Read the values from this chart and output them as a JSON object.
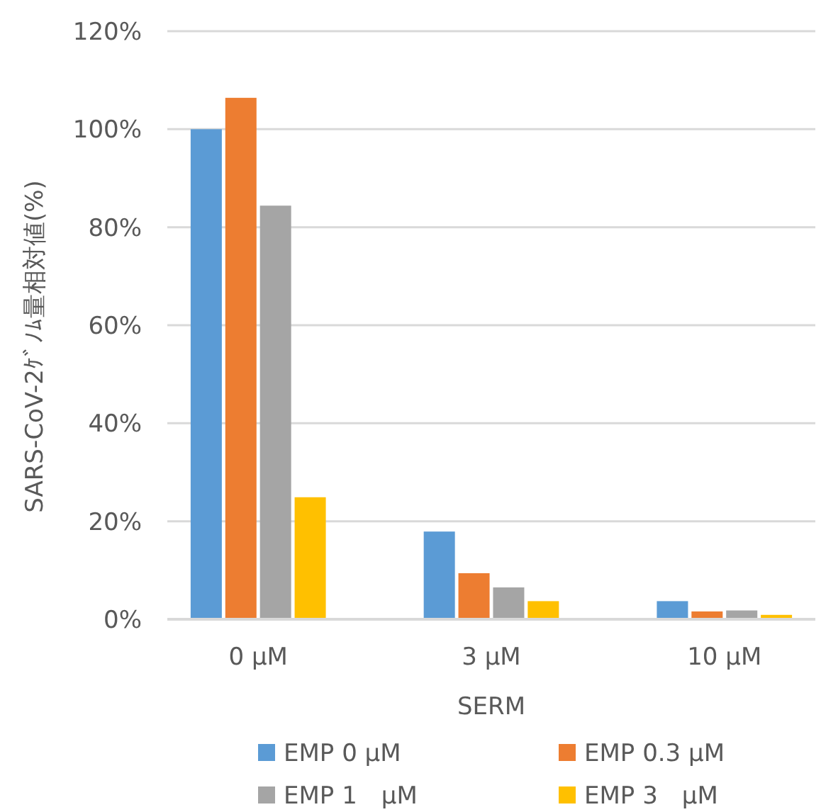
{
  "chart_data": {
    "type": "bar",
    "xlabel": "SERM",
    "ylabel": "SARS-CoV-2ｹﾞﾉﾑ量相対値(%)",
    "categories": [
      "0 μM",
      "3 μM",
      "10 μM"
    ],
    "series": [
      {
        "name": "EMP 0 μM",
        "color": "#5b9bd5",
        "values": [
          100,
          17.9,
          3.7
        ]
      },
      {
        "name": "EMP 0.3 μM",
        "color": "#ed7d31",
        "values": [
          106.4,
          9.4,
          1.6
        ]
      },
      {
        "name": "EMP 1　μM",
        "color": "#a5a5a5",
        "values": [
          84.4,
          6.5,
          1.8
        ]
      },
      {
        "name": "EMP 3　μM",
        "color": "#ffc000",
        "values": [
          24.9,
          3.7,
          0.9
        ]
      }
    ],
    "ylim": [
      0,
      120
    ],
    "yticks": [
      {
        "value": 0,
        "label": "0%"
      },
      {
        "value": 20,
        "label": "20%"
      },
      {
        "value": 40,
        "label": "40%"
      },
      {
        "value": 60,
        "label": "60%"
      },
      {
        "value": 80,
        "label": "80%"
      },
      {
        "value": 100,
        "label": "100%"
      },
      {
        "value": 120,
        "label": "120%"
      }
    ],
    "grid": "y",
    "legend": "bottom"
  }
}
